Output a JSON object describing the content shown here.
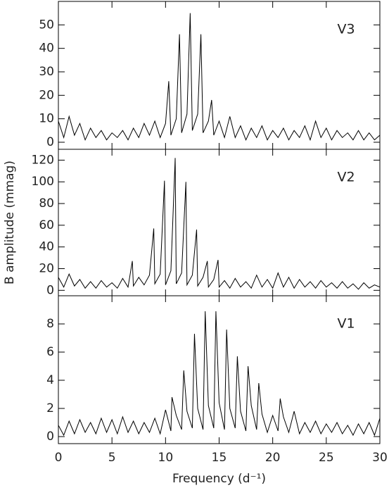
{
  "chart_data": [
    {
      "type": "line",
      "label": "V3",
      "color": "#000000",
      "x": [
        0,
        0.5,
        1,
        1.5,
        2,
        2.5,
        3,
        3.5,
        4,
        4.5,
        5,
        5.5,
        6,
        6.5,
        7,
        7.5,
        8,
        8.5,
        9,
        9.5,
        10,
        10.3,
        10.5,
        11,
        11.3,
        11.5,
        12,
        12.3,
        12.5,
        13,
        13.3,
        13.5,
        14,
        14.3,
        14.5,
        15,
        15.5,
        16,
        16.5,
        17,
        17.5,
        18,
        18.5,
        19,
        19.5,
        20,
        20.5,
        21,
        21.5,
        22,
        22.5,
        23,
        23.5,
        24,
        24.5,
        25,
        25.5,
        26,
        26.5,
        27,
        27.5,
        28,
        28.5,
        29,
        29.5,
        30
      ],
      "values": [
        9,
        2,
        11,
        3,
        8,
        1,
        6,
        2,
        5,
        1,
        4,
        2,
        5,
        1,
        6,
        2,
        8,
        3,
        9,
        2,
        8,
        26,
        3,
        10,
        46,
        4,
        12,
        55,
        5,
        12,
        46,
        4,
        9,
        18,
        3,
        9,
        2,
        11,
        2,
        7,
        1,
        6,
        2,
        7,
        1,
        5,
        2,
        6,
        1,
        5,
        2,
        7,
        1,
        9,
        2,
        6,
        1,
        5,
        2,
        4,
        1,
        5,
        1,
        4,
        1,
        3
      ],
      "xlim": [
        0,
        30
      ],
      "xticks": [
        0,
        5,
        10,
        15,
        20,
        25,
        30
      ],
      "ylim": [
        -3,
        60
      ],
      "yticks": [
        0,
        10,
        20,
        30,
        40,
        50
      ]
    },
    {
      "type": "line",
      "label": "V2",
      "color": "#000000",
      "ylabel": "B amplitude (mmag)",
      "x": [
        0,
        0.5,
        1,
        1.5,
        2,
        2.5,
        3,
        3.5,
        4,
        4.5,
        5,
        5.5,
        6,
        6.5,
        6.9,
        7,
        7.5,
        8,
        8.5,
        8.9,
        9,
        9.5,
        9.9,
        10,
        10.5,
        10.9,
        11,
        11.5,
        11.9,
        12,
        12.5,
        12.9,
        13,
        13.5,
        13.9,
        14,
        14.5,
        14.9,
        15,
        15.5,
        16,
        16.5,
        17,
        17.5,
        18,
        18.5,
        19,
        19.5,
        20,
        20.5,
        21,
        21.5,
        22,
        22.5,
        23,
        23.5,
        24,
        24.5,
        25,
        25.5,
        26,
        26.5,
        27,
        27.5,
        28,
        28.5,
        29,
        29.5,
        30
      ],
      "values": [
        12,
        3,
        15,
        4,
        10,
        2,
        8,
        2,
        9,
        3,
        7,
        2,
        11,
        3,
        27,
        4,
        12,
        5,
        14,
        57,
        6,
        15,
        101,
        5,
        18,
        122,
        6,
        16,
        100,
        5,
        14,
        56,
        4,
        12,
        27,
        3,
        10,
        28,
        3,
        9,
        2,
        11,
        3,
        8,
        2,
        14,
        3,
        10,
        2,
        16,
        3,
        12,
        2,
        10,
        3,
        8,
        2,
        9,
        3,
        7,
        2,
        8,
        2,
        6,
        1,
        7,
        2,
        5,
        3
      ],
      "xlim": [
        0,
        30
      ],
      "xticks": [
        0,
        5,
        10,
        15,
        20,
        25,
        30
      ],
      "ylim": [
        -5,
        130
      ],
      "yticks": [
        0,
        20,
        40,
        60,
        80,
        100,
        120
      ]
    },
    {
      "type": "line",
      "label": "V1",
      "color": "#000000",
      "xlabel": "Frequency (d⁻¹)",
      "x": [
        0,
        0.5,
        1,
        1.5,
        2,
        2.5,
        3,
        3.5,
        4,
        4.5,
        5,
        5.5,
        6,
        6.5,
        7,
        7.5,
        8,
        8.5,
        9,
        9.5,
        10,
        10.5,
        10.6,
        11,
        11.5,
        11.7,
        12,
        12.5,
        12.7,
        13,
        13.5,
        13.7,
        14,
        14.5,
        14.7,
        15,
        15.5,
        15.7,
        16,
        16.5,
        16.7,
        17,
        17.5,
        17.7,
        18,
        18.5,
        18.7,
        19,
        19.5,
        20,
        20.5,
        20.7,
        21,
        21.5,
        22,
        22.5,
        23,
        23.5,
        24,
        24.5,
        25,
        25.5,
        26,
        26.5,
        27,
        27.5,
        28,
        28.5,
        29,
        29.5,
        30
      ],
      "values": [
        0.8,
        0.1,
        1.1,
        0.2,
        1.2,
        0.3,
        1.0,
        0.2,
        1.3,
        0.3,
        1.2,
        0.2,
        1.4,
        0.3,
        1.1,
        0.2,
        1.0,
        0.3,
        1.3,
        0.2,
        1.9,
        0.4,
        2.8,
        1.5,
        0.5,
        4.7,
        1.8,
        0.6,
        7.3,
        2.0,
        0.5,
        8.9,
        2.2,
        0.6,
        8.9,
        2.4,
        0.5,
        7.6,
        2.0,
        0.6,
        5.7,
        1.8,
        0.4,
        5.0,
        2.2,
        0.5,
        3.8,
        1.6,
        0.3,
        1.5,
        0.4,
        2.7,
        1.4,
        0.3,
        1.8,
        0.2,
        1.0,
        0.3,
        1.1,
        0.2,
        0.9,
        0.3,
        1.0,
        0.2,
        0.8,
        0.1,
        0.9,
        0.2,
        1.0,
        0.1,
        1.3
      ],
      "xlim": [
        0,
        30
      ],
      "xticks": [
        0,
        5,
        10,
        15,
        20,
        25,
        30
      ],
      "ylim": [
        -0.5,
        10
      ],
      "yticks": [
        0,
        2,
        4,
        6,
        8
      ]
    }
  ]
}
